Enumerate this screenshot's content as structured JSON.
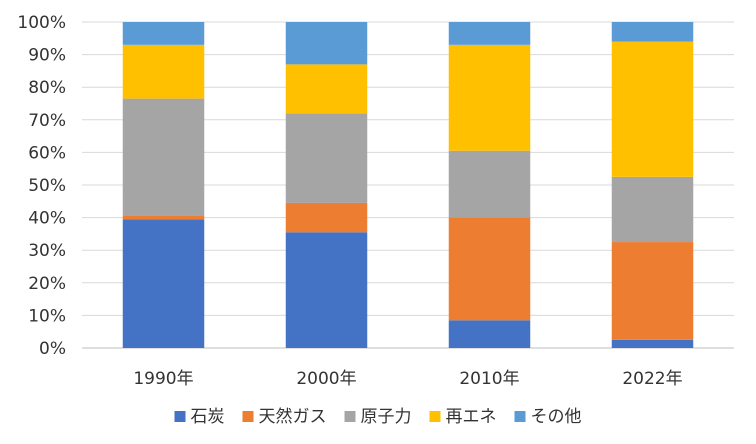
{
  "chart_data": {
    "type": "bar",
    "stacked": "percent",
    "categories": [
      "1990年",
      "2000年",
      "2010年",
      "2022年"
    ],
    "series": [
      {
        "name": "石炭",
        "color": "#4472C4",
        "values": [
          39.5,
          35.5,
          8.5,
          2.5
        ]
      },
      {
        "name": "天然ガス",
        "color": "#ED7D31",
        "values": [
          1,
          9,
          31.5,
          30
        ]
      },
      {
        "name": "原子力",
        "color": "#A5A5A5",
        "values": [
          36,
          27.5,
          20.5,
          20
        ]
      },
      {
        "name": "再エネ",
        "color": "#FFC000",
        "values": [
          16.5,
          15,
          32.5,
          41.5
        ]
      },
      {
        "name": "その他",
        "color": "#5B9BD5",
        "values": [
          7,
          13,
          7,
          6
        ]
      }
    ],
    "ylim": [
      0,
      100
    ],
    "y_ticks": [
      "0%",
      "10%",
      "20%",
      "30%",
      "40%",
      "50%",
      "60%",
      "70%",
      "80%",
      "90%",
      "100%"
    ],
    "grid": true,
    "legend_position": "bottom"
  }
}
